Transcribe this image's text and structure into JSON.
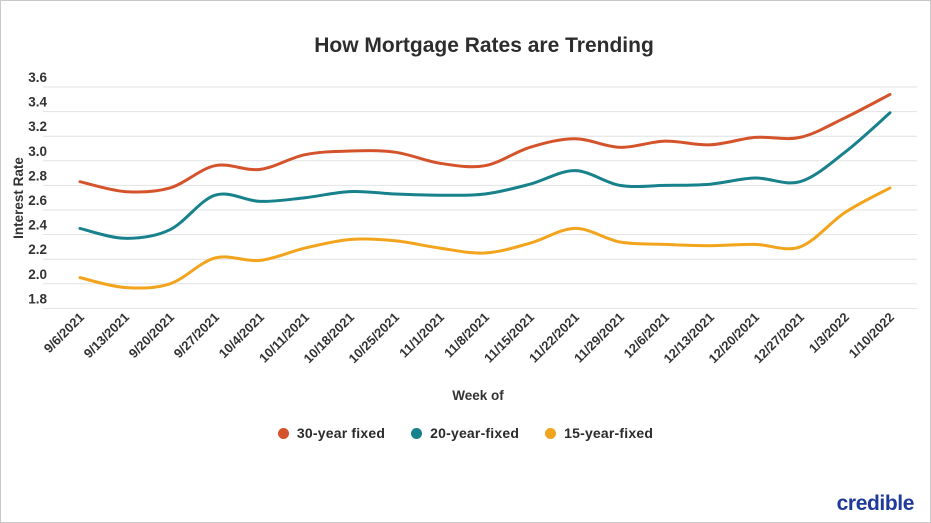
{
  "title": "How Mortgage Rates are Trending",
  "y_axis": {
    "label": "Interest Rate",
    "ticks": [
      "3.6",
      "3.4",
      "3.2",
      "3.0",
      "2.8",
      "2.6",
      "2.4",
      "2.2",
      "2.0",
      "1.8"
    ]
  },
  "x_axis": {
    "label": "Week of"
  },
  "legend": [
    {
      "label": "30-year fixed",
      "color": "#d4532b"
    },
    {
      "label": "20-year-fixed",
      "color": "#17818c"
    },
    {
      "label": "15-year-fixed",
      "color": "#f2a41d"
    }
  ],
  "logo": "credible",
  "colors": {
    "grid": "#e2e2e2",
    "text": "#333333",
    "logo_blue": "#1e3a9a"
  },
  "chart_data": {
    "type": "line",
    "title": "How Mortgage Rates are Trending",
    "xlabel": "Week of",
    "ylabel": "Interest Rate",
    "ylim": [
      1.8,
      3.6
    ],
    "y_tick_step": 0.2,
    "grid": true,
    "legend_position": "bottom",
    "categories": [
      "9/6/2021",
      "9/13/2021",
      "9/20/2021",
      "9/27/2021",
      "10/4/2021",
      "10/11/2021",
      "10/18/2021",
      "10/25/2021",
      "11/1/2021",
      "11/8/2021",
      "11/15/2021",
      "11/22/2021",
      "11/29/2021",
      "12/6/2021",
      "12/13/2021",
      "12/20/2021",
      "12/27/2021",
      "1/3/2022",
      "1/10/2022"
    ],
    "series": [
      {
        "name": "30-year fixed",
        "color": "#d4532b",
        "values": [
          2.83,
          2.75,
          2.78,
          2.96,
          2.93,
          3.05,
          3.08,
          3.07,
          2.98,
          2.96,
          3.11,
          3.18,
          3.11,
          3.16,
          3.13,
          3.19,
          3.19,
          3.35,
          3.54
        ]
      },
      {
        "name": "20-year-fixed",
        "color": "#17818c",
        "values": [
          2.45,
          2.37,
          2.44,
          2.72,
          2.67,
          2.7,
          2.75,
          2.73,
          2.72,
          2.73,
          2.81,
          2.92,
          2.8,
          2.8,
          2.81,
          2.86,
          2.83,
          3.07,
          3.39
        ]
      },
      {
        "name": "15-year-fixed",
        "color": "#f2a41d",
        "values": [
          2.05,
          1.97,
          2.0,
          2.21,
          2.19,
          2.29,
          2.36,
          2.35,
          2.29,
          2.25,
          2.33,
          2.45,
          2.34,
          2.32,
          2.31,
          2.32,
          2.3,
          2.58,
          2.78
        ]
      }
    ]
  }
}
